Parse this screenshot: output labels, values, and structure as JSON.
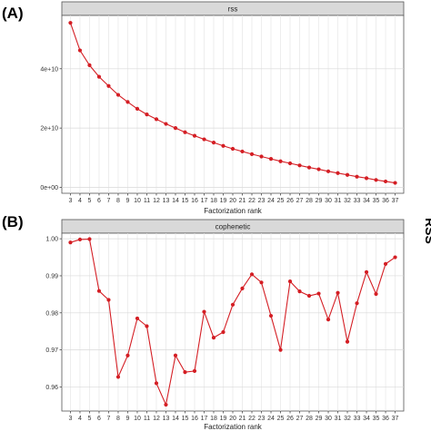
{
  "panels": [
    {
      "letter": "(A)"
    },
    {
      "letter": "(B)"
    }
  ],
  "side_text": "RSS",
  "chart_data": [
    {
      "type": "line",
      "title": "rss",
      "xlabel": "Factorization rank",
      "ylabel": "",
      "ylim": [
        -2000000000.0,
        58000000000.0
      ],
      "y_ticks": [
        0,
        20000000000.0,
        40000000000.0
      ],
      "y_tick_labels": [
        "0e+00",
        "2e+10",
        "4e+10"
      ],
      "grid": true,
      "x": [
        3,
        4,
        5,
        6,
        7,
        8,
        9,
        10,
        11,
        12,
        13,
        14,
        15,
        16,
        17,
        18,
        19,
        20,
        21,
        22,
        23,
        24,
        25,
        26,
        27,
        28,
        29,
        30,
        31,
        32,
        33,
        34,
        35,
        36,
        37
      ],
      "x_tick_labels": [
        "3",
        "4",
        "5",
        "6",
        "7",
        "8",
        "9",
        "10",
        "11",
        "12",
        "13",
        "14",
        "15",
        "16",
        "17",
        "18",
        "19",
        "20",
        "21",
        "22",
        "23",
        "24",
        "25",
        "26",
        "27",
        "28",
        "29",
        "30",
        "31",
        "32",
        "33",
        "34",
        "35",
        "36",
        "37"
      ],
      "series": [
        {
          "color": "#d41e24",
          "values": [
            55500000000.0,
            46200000000.0,
            41200000000.0,
            37300000000.0,
            34200000000.0,
            31200000000.0,
            28800000000.0,
            26500000000.0,
            24600000000.0,
            23000000000.0,
            21400000000.0,
            20000000000.0,
            18600000000.0,
            17400000000.0,
            16200000000.0,
            15100000000.0,
            14000000000.0,
            13000000000.0,
            12100000000.0,
            11200000000.0,
            10400000000.0,
            9600000000.0,
            8800000000.0,
            8100000000.0,
            7400000000.0,
            6700000000.0,
            6100000000.0,
            5400000000.0,
            4800000000.0,
            4200000000.0,
            3600000000.0,
            3100000000.0,
            2500000000.0,
            2000000000.0,
            1500000000.0
          ]
        }
      ]
    },
    {
      "type": "line",
      "title": "cophenetic",
      "xlabel": "Factorization rank",
      "ylabel": "",
      "ylim": [
        0.9535,
        1.0015
      ],
      "y_ticks": [
        0.96,
        0.97,
        0.98,
        0.99,
        1.0
      ],
      "y_tick_labels": [
        "0.96",
        "0.97",
        "0.98",
        "0.99",
        "1.00"
      ],
      "grid": true,
      "x": [
        3,
        4,
        5,
        6,
        7,
        8,
        9,
        10,
        11,
        12,
        13,
        14,
        15,
        16,
        17,
        18,
        19,
        20,
        21,
        22,
        23,
        24,
        25,
        26,
        27,
        28,
        29,
        30,
        31,
        32,
        33,
        34,
        35,
        36,
        37
      ],
      "x_tick_labels": [
        "3",
        "4",
        "5",
        "6",
        "7",
        "8",
        "9",
        "10",
        "11",
        "12",
        "13",
        "14",
        "15",
        "16",
        "17",
        "18",
        "19",
        "20",
        "21",
        "22",
        "23",
        "24",
        "25",
        "26",
        "27",
        "28",
        "29",
        "30",
        "31",
        "32",
        "33",
        "34",
        "35",
        "36",
        "37"
      ],
      "series": [
        {
          "color": "#d41e24",
          "values": [
            0.999,
            0.9998,
            0.9999,
            0.9859,
            0.9835,
            0.9627,
            0.9685,
            0.9785,
            0.9764,
            0.961,
            0.9552,
            0.9685,
            0.964,
            0.9643,
            0.9803,
            0.9733,
            0.9748,
            0.9822,
            0.9866,
            0.9904,
            0.9882,
            0.9792,
            0.97,
            0.9885,
            0.9858,
            0.9846,
            0.9852,
            0.9782,
            0.9854,
            0.9722,
            0.9826,
            0.991,
            0.9851,
            0.9932,
            0.995
          ]
        }
      ]
    }
  ]
}
